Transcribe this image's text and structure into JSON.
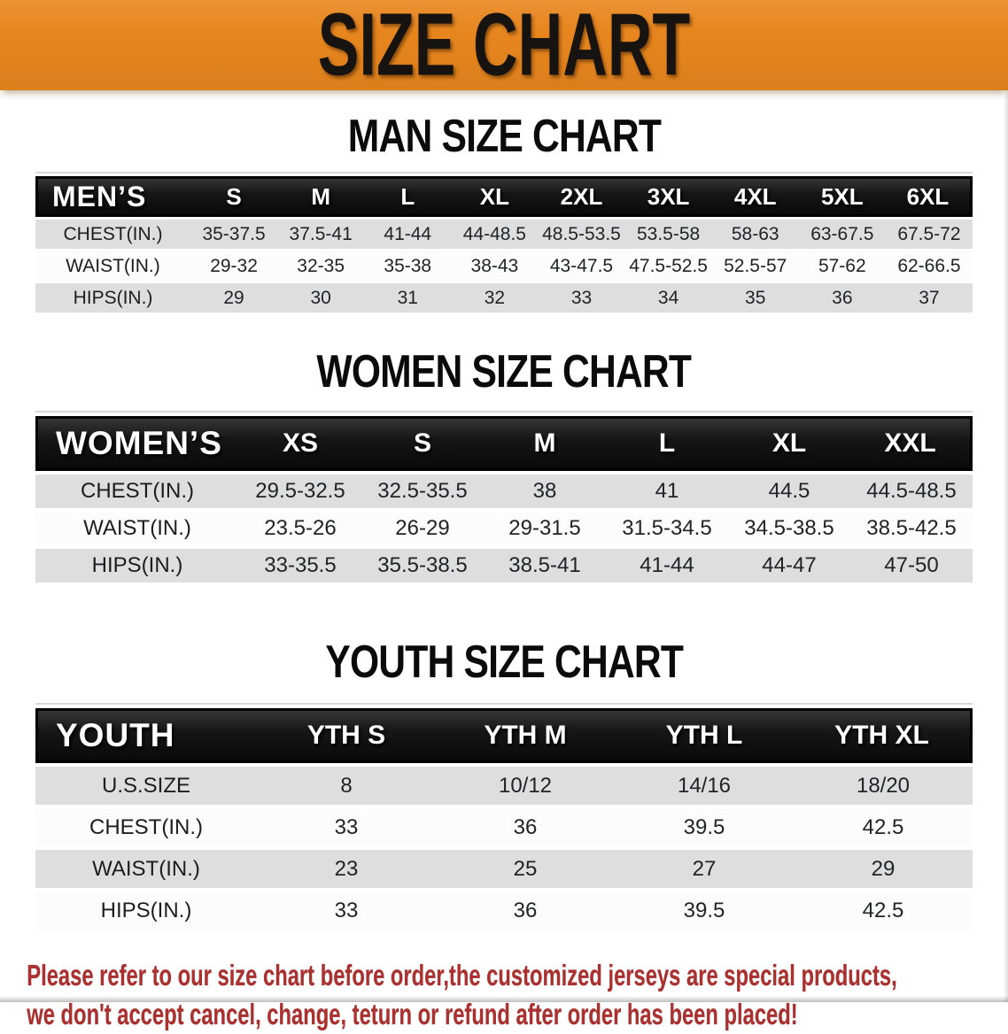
{
  "banner": {
    "title": "SIZE CHART",
    "bg_color": "#e8861e",
    "text_color": "#171310"
  },
  "colors": {
    "table_header_bg": "#141414",
    "table_header_text": "#ffffff",
    "shaded_row_bg": "#dedede",
    "plain_row_bg": "#fcfcfc",
    "footer_text": "#a93130"
  },
  "sections": [
    {
      "heading": "MAN SIZE CHART",
      "label": "MEN’S",
      "columns": [
        "S",
        "M",
        "L",
        "XL",
        "2XL",
        "3XL",
        "4XL",
        "5XL",
        "6XL"
      ],
      "rows": [
        {
          "label": "CHEST(IN.)",
          "values": [
            "35-37.5",
            "37.5-41",
            "41-44",
            "44-48.5",
            "48.5-53.5",
            "53.5-58",
            "58-63",
            "63-67.5",
            "67.5-72"
          ]
        },
        {
          "label": "WAIST(IN.)",
          "values": [
            "29-32",
            "32-35",
            "35-38",
            "38-43",
            "43-47.5",
            "47.5-52.5",
            "52.5-57",
            "57-62",
            "62-66.5"
          ]
        },
        {
          "label": "HIPS(IN.)",
          "values": [
            "29",
            "30",
            "31",
            "32",
            "33",
            "34",
            "35",
            "36",
            "37"
          ]
        }
      ]
    },
    {
      "heading": "WOMEN SIZE CHART",
      "label": "WOMEN’S",
      "columns": [
        "XS",
        "S",
        "M",
        "L",
        "XL",
        "XXL"
      ],
      "rows": [
        {
          "label": "CHEST(IN.)",
          "values": [
            "29.5-32.5",
            "32.5-35.5",
            "38",
            "41",
            "44.5",
            "44.5-48.5"
          ]
        },
        {
          "label": "WAIST(IN.)",
          "values": [
            "23.5-26",
            "26-29",
            "29-31.5",
            "31.5-34.5",
            "34.5-38.5",
            "38.5-42.5"
          ]
        },
        {
          "label": "HIPS(IN.)",
          "values": [
            "33-35.5",
            "35.5-38.5",
            "38.5-41",
            "41-44",
            "44-47",
            "47-50"
          ]
        }
      ]
    },
    {
      "heading": "YOUTH SIZE CHART",
      "label": "YOUTH",
      "columns": [
        "YTH S",
        "YTH M",
        "YTH L",
        "YTH XL"
      ],
      "rows": [
        {
          "label": "U.S.SIZE",
          "values": [
            "8",
            "10/12",
            "14/16",
            "18/20"
          ]
        },
        {
          "label": "CHEST(IN.)",
          "values": [
            "33",
            "36",
            "39.5",
            "42.5"
          ]
        },
        {
          "label": "WAIST(IN.)",
          "values": [
            "23",
            "25",
            "27",
            "29"
          ]
        },
        {
          "label": "HIPS(IN.)",
          "values": [
            "33",
            "36",
            "39.5",
            "42.5"
          ]
        }
      ]
    }
  ],
  "footer": {
    "line1": "Please refer to our size chart before order,the customized jerseys are special products,",
    "line2": "we don't accept cancel, change, teturn or refund after order has been placed!"
  }
}
